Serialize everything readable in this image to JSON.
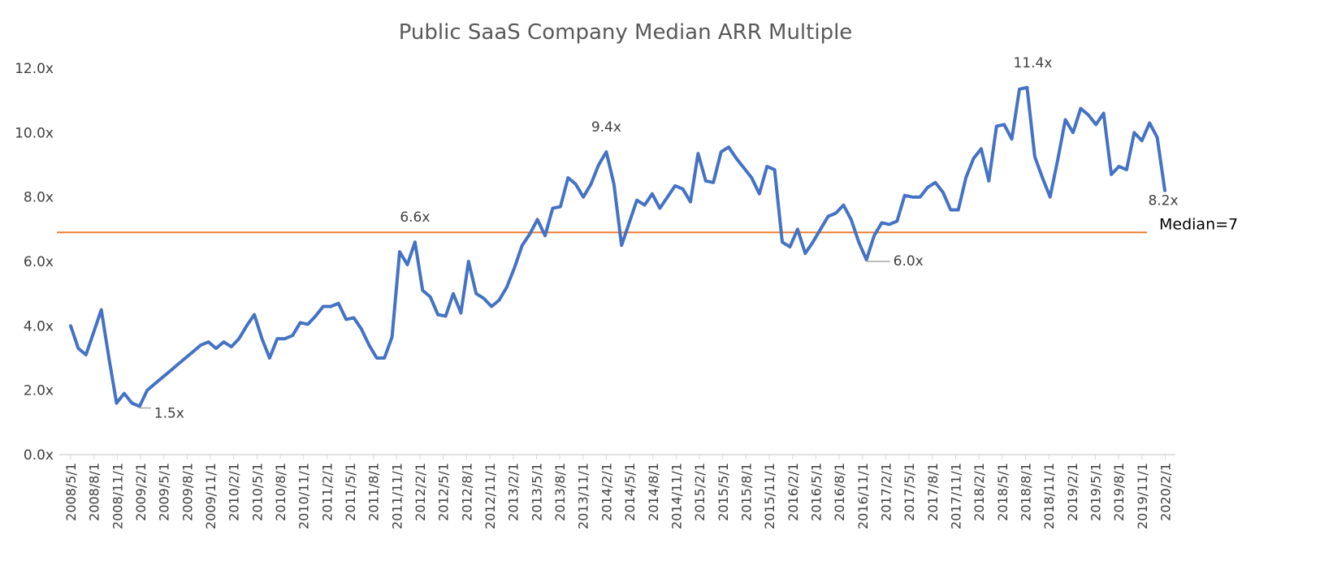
{
  "chart_data": {
    "type": "line",
    "title": "Public SaaS Company Median ARR Multiple",
    "xlabel": "",
    "ylabel": "",
    "ylim": [
      0,
      12
    ],
    "y_ticks": [
      "0.0x",
      "2.0x",
      "4.0x",
      "6.0x",
      "8.0x",
      "10.0x",
      "12.0x"
    ],
    "y_tick_values": [
      0,
      2,
      4,
      6,
      8,
      10,
      12
    ],
    "x_tick_labels": [
      "2008/5/1",
      "2008/8/1",
      "2008/11/1",
      "2009/2/1",
      "2009/5/1",
      "2009/8/1",
      "2009/11/1",
      "2010/2/1",
      "2010/5/1",
      "2010/8/1",
      "2010/11/1",
      "2011/2/1",
      "2011/5/1",
      "2011/8/1",
      "2011/11/1",
      "2012/2/1",
      "2012/5/1",
      "2012/8/1",
      "2012/11/1",
      "2013/2/1",
      "2013/5/1",
      "2013/8/1",
      "2013/11/1",
      "2014/2/1",
      "2014/5/1",
      "2014/8/1",
      "2014/11/1",
      "2015/2/1",
      "2015/5/1",
      "2015/8/1",
      "2015/11/1",
      "2016/2/1",
      "2016/5/1",
      "2016/8/1",
      "2016/11/1",
      "2017/2/1",
      "2017/5/1",
      "2017/8/1",
      "2017/11/1",
      "2018/2/1",
      "2018/5/1",
      "2018/8/1",
      "2018/11/1",
      "2019/2/1",
      "2019/5/1",
      "2019/8/1",
      "2019/11/1",
      "2020/2/1"
    ],
    "grid": false,
    "legend": "none",
    "series": [
      {
        "values": [
          4.0,
          3.3,
          3.1,
          3.8,
          4.5,
          3.0,
          1.6,
          1.9,
          1.6,
          1.5,
          2.0,
          2.2,
          2.4,
          2.6,
          2.8,
          3.0,
          3.2,
          3.4,
          3.5,
          3.3,
          3.5,
          3.35,
          3.6,
          4.0,
          4.35,
          3.6,
          3.0,
          3.6,
          3.6,
          3.7,
          4.1,
          4.05,
          4.3,
          4.6,
          4.6,
          4.7,
          4.2,
          4.25,
          3.9,
          3.4,
          3.0,
          3.0,
          3.65,
          6.3,
          5.9,
          6.6,
          5.1,
          4.9,
          4.35,
          4.3,
          5.0,
          4.4,
          6.0,
          5.0,
          4.85,
          4.6,
          4.8,
          5.2,
          5.8,
          6.5,
          6.85,
          7.3,
          6.8,
          7.65,
          7.7,
          8.6,
          8.4,
          8.0,
          8.4,
          9.0,
          9.4,
          8.4,
          6.5,
          7.2,
          7.9,
          7.75,
          8.1,
          7.65,
          8.0,
          8.35,
          8.25,
          7.85,
          9.35,
          8.5,
          8.45,
          9.4,
          9.55,
          9.2,
          8.9,
          8.6,
          8.1,
          8.95,
          8.85,
          6.6,
          6.45,
          7.0,
          6.25,
          6.6,
          7.0,
          7.4,
          7.5,
          7.75,
          7.3,
          6.6,
          6.05,
          6.8,
          7.2,
          7.15,
          7.25,
          8.05,
          8.0,
          8.0,
          8.3,
          8.45,
          8.15,
          7.6,
          7.6,
          8.6,
          9.2,
          9.5,
          8.5,
          10.2,
          10.25,
          9.8,
          11.35,
          11.4,
          9.25,
          8.6,
          8.0,
          9.15,
          10.4,
          10.0,
          10.75,
          10.55,
          10.25,
          10.6,
          8.7,
          8.95,
          8.85,
          10.0,
          9.75,
          10.3,
          9.85,
          8.2
        ]
      }
    ],
    "reference_line": {
      "value": 6.9,
      "label": "Median=7"
    },
    "annotations": [
      {
        "label": "1.5x",
        "index": 9
      },
      {
        "label": "6.6x",
        "index": 45
      },
      {
        "label": "9.4x",
        "index": 70
      },
      {
        "label": "6.0x",
        "index": 104
      },
      {
        "label": "11.4x",
        "index": 125
      },
      {
        "label": "8.2x",
        "index": 143
      }
    ],
    "colors": {
      "series": "#4472c4",
      "median": "#ed7d31",
      "leader": "#a6a6a6",
      "axis": "#d9d9d9"
    }
  }
}
